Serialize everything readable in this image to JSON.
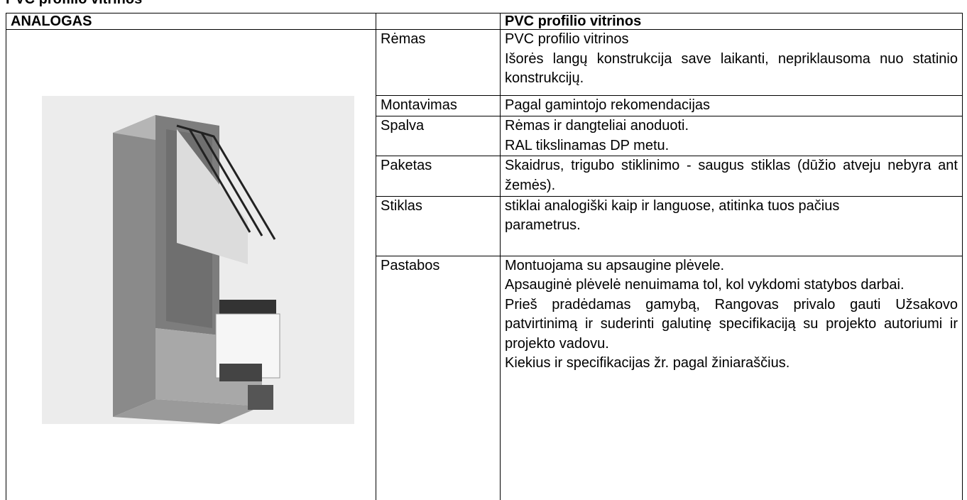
{
  "heading": "PVC profilio vitrinos",
  "table": {
    "header_left": "ANALOGAS",
    "header_right": "PVC profilio vitrinos",
    "rows": [
      {
        "label": "Rėmas",
        "lines": [
          "PVC profilio vitrinos",
          "Išorės langų konstrukcija save laikanti, nepriklausoma nuo statinio konstrukcijų."
        ]
      },
      {
        "label": "Montavimas",
        "lines": [
          "Pagal gamintojo rekomendacijas"
        ]
      },
      {
        "label": "Spalva",
        "lines": [
          "Rėmas ir dangteliai anoduoti.",
          "RAL tikslinamas DP metu."
        ]
      },
      {
        "label": "Paketas",
        "lines": [
          "Skaidrus, trigubo stiklinimo - saugus stiklas (dūžio atveju nebyra ant žemės)."
        ]
      },
      {
        "label": "Stiklas",
        "lines": [
          "stiklai analogiški kaip ir languose, atitinka tuos pačius",
          "parametrus."
        ]
      },
      {
        "label": "Pastabos",
        "lines": [
          "Montuojama su apsaugine plėvele.",
          "Apsauginė plėvelė nenuimama tol, kol vykdomi statybos darbai.",
          "Prieš pradėdamas gamybą, Rangovas privalo gauti Užsakovo patvirtinimą ir suderinti galutinę specifikaciją su projekto autoriumi ir projekto vadovu.",
          "Kiekius ir specifikacijas žr. pagal žiniaraščius."
        ]
      }
    ]
  }
}
